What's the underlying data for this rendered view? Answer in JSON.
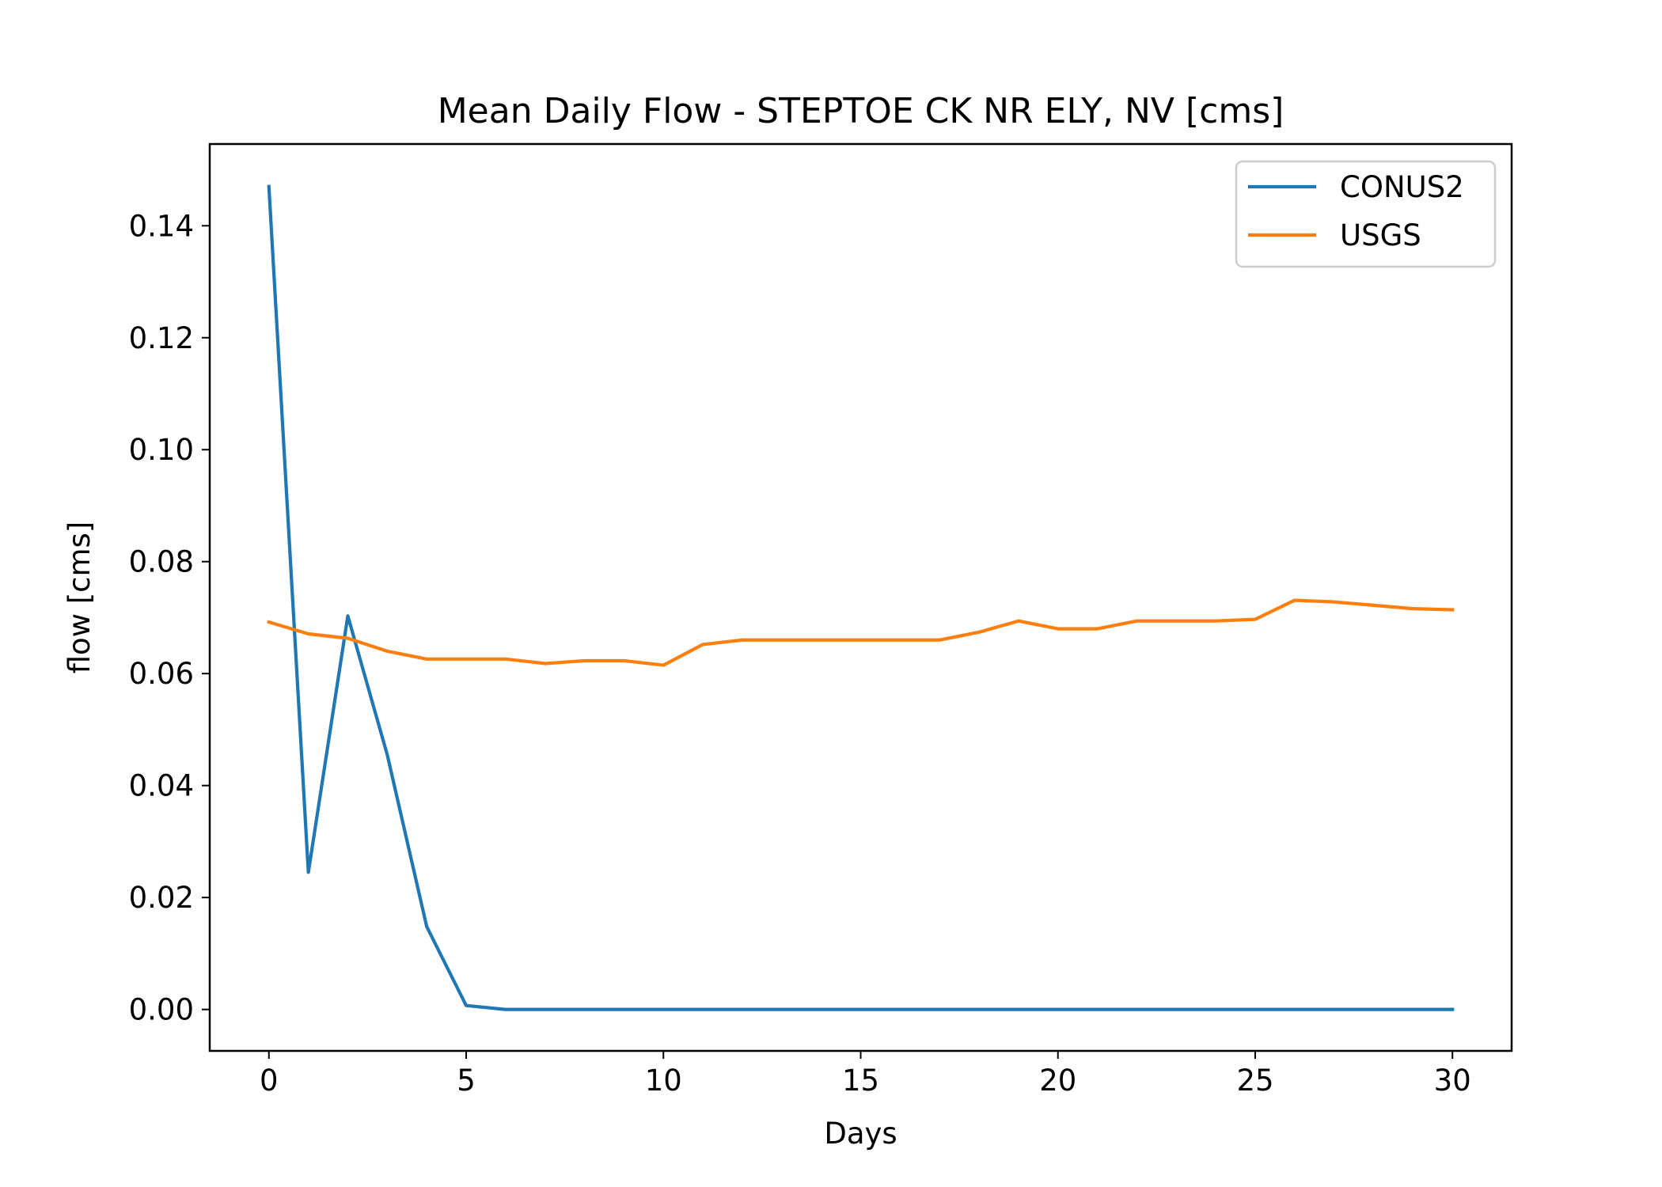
{
  "chart_data": {
    "type": "line",
    "title": "Mean Daily Flow - STEPTOE CK NR ELY, NV [cms]",
    "xlabel": "Days",
    "ylabel": "flow [cms]",
    "xlim": [
      -1.5,
      31.5
    ],
    "ylim": [
      -0.0074,
      0.1546
    ],
    "xticks": [
      0,
      5,
      10,
      15,
      20,
      25,
      30
    ],
    "xtick_labels": [
      "0",
      "5",
      "10",
      "15",
      "20",
      "25",
      "30"
    ],
    "yticks": [
      0.0,
      0.02,
      0.04,
      0.06,
      0.08,
      0.1,
      0.12,
      0.14
    ],
    "ytick_labels": [
      "0.00",
      "0.02",
      "0.04",
      "0.06",
      "0.08",
      "0.10",
      "0.12",
      "0.14"
    ],
    "grid": false,
    "legend_position": "upper-right",
    "x": [
      0,
      1,
      2,
      3,
      4,
      5,
      6,
      7,
      8,
      9,
      10,
      11,
      12,
      13,
      14,
      15,
      16,
      17,
      18,
      19,
      20,
      21,
      22,
      23,
      24,
      25,
      26,
      27,
      28,
      29,
      30
    ],
    "series": [
      {
        "name": "CONUS2",
        "color": "#1f77b4",
        "values": [
          0.147,
          0.0245,
          0.0703,
          0.0455,
          0.0148,
          0.0007,
          0.0,
          0.0,
          0.0,
          0.0,
          0.0,
          0.0,
          0.0,
          0.0,
          0.0,
          0.0,
          0.0,
          0.0,
          0.0,
          0.0,
          0.0,
          0.0,
          0.0,
          0.0,
          0.0,
          0.0,
          0.0,
          0.0,
          0.0,
          0.0,
          0.0
        ]
      },
      {
        "name": "USGS",
        "color": "#ff7f0e",
        "values": [
          0.0692,
          0.0671,
          0.0663,
          0.064,
          0.0626,
          0.0626,
          0.0626,
          0.0618,
          0.0623,
          0.0623,
          0.0615,
          0.0652,
          0.066,
          0.066,
          0.066,
          0.066,
          0.066,
          0.066,
          0.0674,
          0.0694,
          0.068,
          0.068,
          0.0694,
          0.0694,
          0.0694,
          0.0697,
          0.0731,
          0.0728,
          0.0722,
          0.0716,
          0.0714
        ]
      }
    ]
  }
}
